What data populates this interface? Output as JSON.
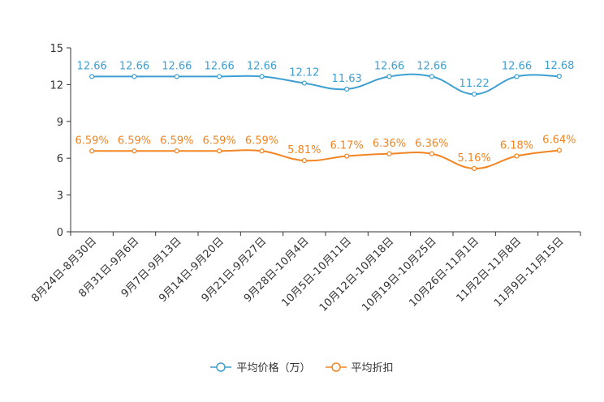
{
  "chart_data": {
    "type": "line",
    "categories": [
      "8月24日-8月30日",
      "8月31日-9月6日",
      "9月7日-9月13日",
      "9月14日-9月20日",
      "9月21日-9月27日",
      "9月28日-10月4日",
      "10月5日-10月11日",
      "10月12日-10月18日",
      "10月19日-10月25日",
      "10月26日-11月1日",
      "11月2日-11月8日",
      "11月9日-11月15日"
    ],
    "series": [
      {
        "name": "平均价格（万）",
        "color": "#3d9fd1",
        "values": [
          12.66,
          12.66,
          12.66,
          12.66,
          12.66,
          12.12,
          11.63,
          12.66,
          12.66,
          11.22,
          12.66,
          12.68
        ],
        "labels": [
          "12.66",
          "12.66",
          "12.66",
          "12.66",
          "12.66",
          "12.12",
          "11.63",
          "12.66",
          "12.66",
          "11.22",
          "12.66",
          "12.68"
        ]
      },
      {
        "name": "平均折扣",
        "color": "#f28522",
        "values": [
          6.59,
          6.59,
          6.59,
          6.59,
          6.59,
          5.81,
          6.17,
          6.36,
          6.36,
          5.16,
          6.18,
          6.64
        ],
        "labels": [
          "6.59%",
          "6.59%",
          "6.59%",
          "6.59%",
          "6.59%",
          "5.81%",
          "6.17%",
          "6.36%",
          "6.36%",
          "5.16%",
          "6.18%",
          "6.64%"
        ]
      }
    ],
    "yticks": [
      0,
      3,
      6,
      9,
      12,
      15
    ],
    "ylim": [
      0,
      15
    ],
    "title": "",
    "xlabel": "",
    "ylabel": "",
    "legend_position": "bottom"
  }
}
